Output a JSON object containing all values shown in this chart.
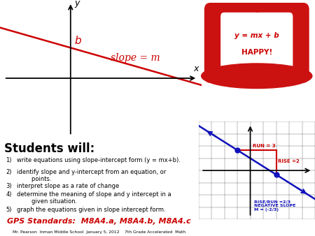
{
  "bg_top": "#ffffff",
  "bg_bottom": "#f0f080",
  "title": "Students will:",
  "items": [
    "write equations using slope-intercept form (y = mx+b).",
    "identify slope and y-intercept from an equation, or\n        points.",
    "interpret slope as a rate of change",
    "determine the meaning of slope and y intercept in a\n        given situation.",
    "graph the equations given in slope intercept form."
  ],
  "gps_text": "GPS Standards:  M8A4.a, M8A4.b, M8A4.c",
  "footer_text": "Mr. Pearson  Inman Middle School  January 5, 2012    7th Grade Accelerated  Math",
  "slope_label": "slope = m",
  "b_label": "b",
  "hat_line1": "y = mx + b",
  "hat_line2": "HAPPY!",
  "run_label": "RUN = 3",
  "rise_label": "RISE =2",
  "rise_run_label": "RISE/RUN =2/3\nNEGATIVE SLOPE\nM = (-2/3)",
  "red_color": "#cc0000",
  "blue_color": "#1111bb",
  "dark_red": "#cc0000",
  "hat_red": "#cc1111",
  "yellow_bg": "#f0f080"
}
